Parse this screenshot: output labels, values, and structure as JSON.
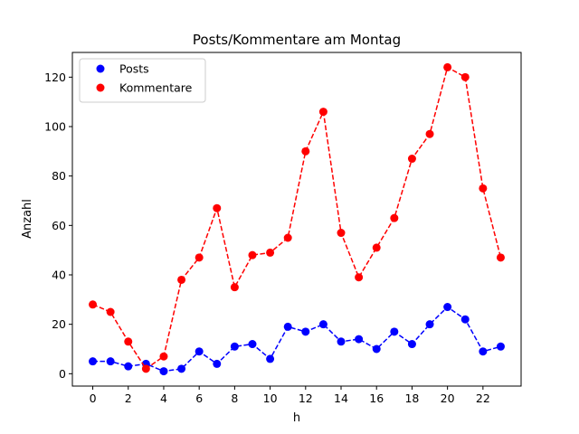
{
  "chart_data": {
    "type": "line",
    "title": "Posts/Kommentare am Montag",
    "xlabel": "h",
    "ylabel": "Anzahl",
    "x": [
      0,
      1,
      2,
      3,
      4,
      5,
      6,
      7,
      8,
      9,
      10,
      11,
      12,
      13,
      14,
      15,
      16,
      17,
      18,
      19,
      20,
      21,
      22,
      23
    ],
    "xlim": [
      -1.15,
      24.15
    ],
    "ylim": [
      -5,
      130
    ],
    "xticks": [
      0,
      2,
      4,
      6,
      8,
      10,
      12,
      14,
      16,
      18,
      20,
      22
    ],
    "yticks": [
      0,
      20,
      40,
      60,
      80,
      100,
      120
    ],
    "grid": false,
    "legend_position": "upper left",
    "series": [
      {
        "name": "Posts",
        "color": "#0000ff",
        "linestyle": "dashed",
        "marker": "circle",
        "values": [
          5,
          5,
          3,
          4,
          1,
          2,
          9,
          4,
          11,
          12,
          6,
          19,
          17,
          20,
          13,
          14,
          10,
          17,
          12,
          20,
          27,
          22,
          9,
          11
        ]
      },
      {
        "name": "Kommentare",
        "color": "#ff0000",
        "linestyle": "dashed",
        "marker": "circle",
        "values": [
          28,
          25,
          13,
          2,
          7,
          38,
          47,
          67,
          35,
          48,
          49,
          55,
          90,
          106,
          57,
          39,
          51,
          63,
          87,
          97,
          124,
          120,
          75,
          47
        ]
      }
    ]
  }
}
